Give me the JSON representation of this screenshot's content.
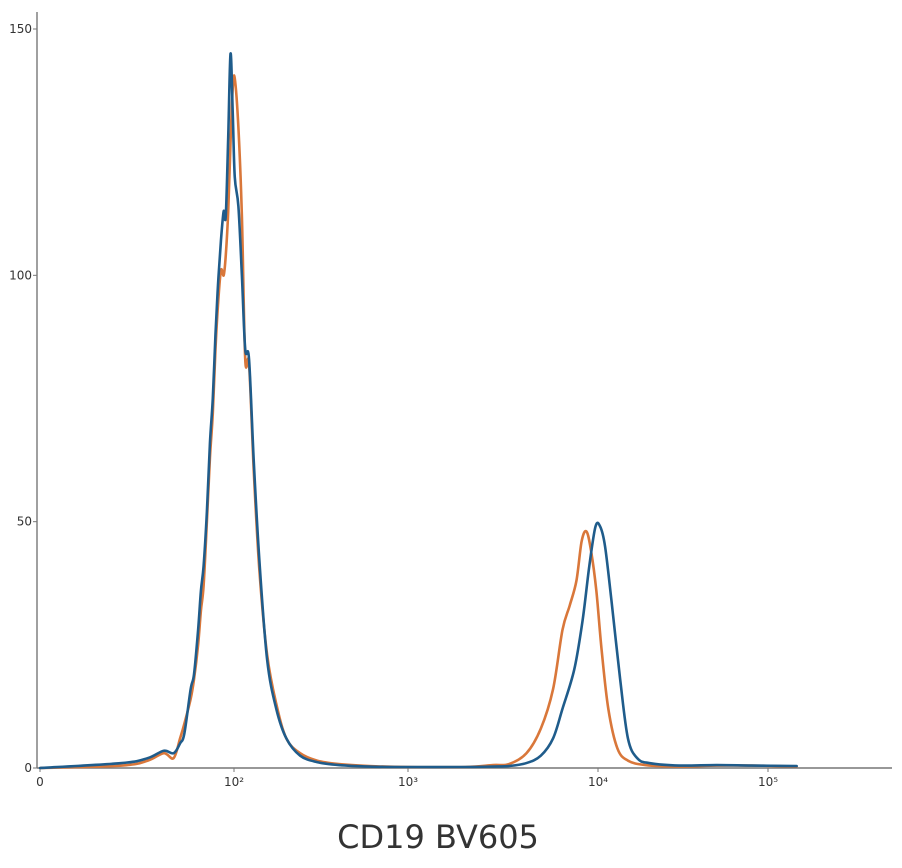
{
  "chart_data": {
    "type": "line",
    "title": "",
    "xlabel": "CD19 BV605",
    "ylabel": "",
    "x_scale": "biexponential",
    "ylim": [
      0,
      150
    ],
    "grid": false,
    "x_ticks": [
      {
        "label": "0",
        "value": 0
      },
      {
        "label": "10²",
        "value": 100
      },
      {
        "label": "10³",
        "value": 1000
      },
      {
        "label": "10⁴",
        "value": 10000
      },
      {
        "label": "10⁵",
        "value": 100000
      }
    ],
    "y_ticks": [
      {
        "label": "0",
        "value": 0
      },
      {
        "label": "50",
        "value": 50
      },
      {
        "label": "100",
        "value": 100
      },
      {
        "label": "150",
        "value": 150
      }
    ],
    "series": [
      {
        "color": "#d9773a",
        "points": [
          [
            0,
            0
          ],
          [
            6,
            0.5
          ],
          [
            12,
            1.5
          ],
          [
            18,
            3
          ],
          [
            23,
            2
          ],
          [
            27,
            6
          ],
          [
            30,
            9
          ],
          [
            35,
            14
          ],
          [
            38,
            18
          ],
          [
            42,
            25
          ],
          [
            45,
            32
          ],
          [
            48,
            37
          ],
          [
            52,
            50
          ],
          [
            56,
            63
          ],
          [
            60,
            72
          ],
          [
            64,
            85
          ],
          [
            68,
            94
          ],
          [
            73,
            101
          ],
          [
            78,
            100
          ],
          [
            82,
            104
          ],
          [
            87,
            113
          ],
          [
            92,
            127
          ],
          [
            97,
            138
          ],
          [
            101,
            140
          ],
          [
            106,
            130
          ],
          [
            111,
            112
          ],
          [
            116,
            83
          ],
          [
            122,
            82
          ],
          [
            130,
            60
          ],
          [
            140,
            40
          ],
          [
            155,
            23
          ],
          [
            175,
            13
          ],
          [
            200,
            6
          ],
          [
            240,
            3
          ],
          [
            300,
            1.5
          ],
          [
            400,
            0.8
          ],
          [
            600,
            0.4
          ],
          [
            1000,
            0.2
          ],
          [
            2000,
            0.2
          ],
          [
            2800,
            0.6
          ],
          [
            3400,
            0.8
          ],
          [
            4200,
            3
          ],
          [
            5000,
            8
          ],
          [
            5800,
            16
          ],
          [
            6500,
            28
          ],
          [
            7100,
            33
          ],
          [
            7700,
            38
          ],
          [
            8200,
            46
          ],
          [
            8700,
            48
          ],
          [
            9200,
            44
          ],
          [
            9800,
            36
          ],
          [
            10500,
            24
          ],
          [
            11500,
            12
          ],
          [
            13000,
            4
          ],
          [
            15000,
            1.5
          ],
          [
            19000,
            0.6
          ],
          [
            30000,
            0.3
          ],
          [
            50000,
            0.5
          ],
          [
            80000,
            0.5
          ],
          [
            140000,
            0.3
          ]
        ]
      },
      {
        "color": "#1f5c8b",
        "points": [
          [
            0,
            0
          ],
          [
            6,
            1
          ],
          [
            12,
            2
          ],
          [
            18,
            3.5
          ],
          [
            23,
            3
          ],
          [
            27,
            5
          ],
          [
            30,
            7
          ],
          [
            35,
            16
          ],
          [
            38,
            19
          ],
          [
            42,
            28
          ],
          [
            45,
            36
          ],
          [
            48,
            41
          ],
          [
            52,
            52
          ],
          [
            56,
            66
          ],
          [
            60,
            75
          ],
          [
            64,
            88
          ],
          [
            68,
            98
          ],
          [
            73,
            107
          ],
          [
            78,
            113
          ],
          [
            82,
            112
          ],
          [
            87,
            128
          ],
          [
            92,
            145
          ],
          [
            97,
            133
          ],
          [
            101,
            120
          ],
          [
            106,
            114
          ],
          [
            111,
            100
          ],
          [
            116,
            85
          ],
          [
            122,
            83
          ],
          [
            130,
            62
          ],
          [
            140,
            42
          ],
          [
            155,
            22
          ],
          [
            175,
            12
          ],
          [
            200,
            6
          ],
          [
            240,
            2.5
          ],
          [
            300,
            1.2
          ],
          [
            400,
            0.6
          ],
          [
            600,
            0.3
          ],
          [
            1000,
            0.2
          ],
          [
            2000,
            0.2
          ],
          [
            2800,
            0.3
          ],
          [
            3400,
            0.4
          ],
          [
            4200,
            1
          ],
          [
            5000,
            2.5
          ],
          [
            5800,
            6
          ],
          [
            6500,
            12
          ],
          [
            7500,
            20
          ],
          [
            8300,
            30
          ],
          [
            9000,
            41
          ],
          [
            9700,
            49
          ],
          [
            10300,
            49
          ],
          [
            11000,
            45
          ],
          [
            12000,
            34
          ],
          [
            13500,
            18
          ],
          [
            15000,
            6
          ],
          [
            17000,
            2
          ],
          [
            20000,
            1
          ],
          [
            30000,
            0.5
          ],
          [
            50000,
            0.6
          ],
          [
            80000,
            0.5
          ],
          [
            140000,
            0.4
          ]
        ]
      }
    ]
  }
}
